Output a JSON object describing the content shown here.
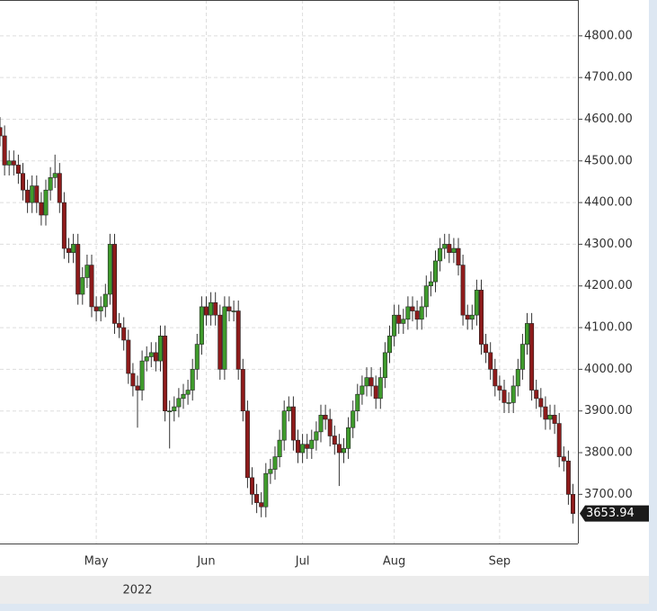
{
  "chart_data": {
    "type": "candlestick",
    "categories": [
      null,
      null,
      null,
      null,
      null,
      null,
      null,
      null,
      null,
      null,
      null,
      null,
      null,
      null,
      null,
      null,
      null,
      null,
      null,
      null,
      null,
      "May",
      null,
      null,
      null,
      null,
      null,
      null,
      null,
      null,
      null,
      null,
      null,
      null,
      null,
      null,
      null,
      null,
      null,
      null,
      null,
      null,
      null,
      null,
      null,
      "Jun",
      null,
      null,
      null,
      null,
      null,
      null,
      null,
      null,
      null,
      null,
      null,
      null,
      null,
      null,
      null,
      null,
      null,
      null,
      null,
      null,
      "Jul",
      null,
      null,
      null,
      null,
      null,
      null,
      null,
      null,
      null,
      null,
      null,
      null,
      null,
      null,
      null,
      null,
      null,
      null,
      null,
      "Aug",
      null,
      null,
      null,
      null,
      null,
      null,
      null,
      null,
      null,
      null,
      null,
      null,
      null,
      null,
      null,
      null,
      null,
      null,
      null,
      null,
      null,
      null,
      "Sep",
      null,
      null,
      null,
      null,
      null,
      null,
      null,
      null,
      null,
      null,
      null,
      null,
      null,
      null,
      null,
      null
    ],
    "open": [
      4580,
      4560,
      4490,
      4500,
      4490,
      4470,
      4430,
      4400,
      4440,
      4400,
      4370,
      4430,
      4460,
      4470,
      4400,
      4290,
      4280,
      4300,
      4180,
      4220,
      4250,
      4150,
      4140,
      4150,
      4180,
      4300,
      4110,
      4100,
      4070,
      3990,
      3960,
      3950,
      4020,
      4030,
      4040,
      4020,
      4080,
      3900,
      3900,
      3910,
      3930,
      3940,
      3950,
      4000,
      4060,
      4150,
      4130,
      4160,
      4130,
      4000,
      4150,
      4140,
      4140,
      4000,
      3900,
      3740,
      3700,
      3680,
      3670,
      3750,
      3760,
      3790,
      3830,
      3900,
      3910,
      3830,
      3800,
      3820,
      3810,
      3830,
      3850,
      3890,
      3880,
      3840,
      3820,
      3800,
      3810,
      3860,
      3900,
      3940,
      3960,
      3980,
      3960,
      3930,
      3980,
      4040,
      4080,
      4130,
      4110,
      4120,
      4150,
      4140,
      4120,
      4150,
      4200,
      4210,
      4260,
      4290,
      4300,
      4280,
      4290,
      4250,
      4130,
      4120,
      4130,
      4190,
      4060,
      4040,
      4000,
      3960,
      3950,
      3920,
      3920,
      3960,
      4000,
      4060,
      4110,
      3950,
      3930,
      3910,
      3880,
      3890,
      3870,
      3790,
      3780,
      3700
    ],
    "high": [
      4605,
      4585,
      4525,
      4525,
      4515,
      4495,
      4455,
      4465,
      4465,
      4425,
      4455,
      4485,
      4515,
      4495,
      4425,
      4315,
      4325,
      4325,
      4245,
      4275,
      4275,
      4175,
      4175,
      4205,
      4325,
      4325,
      4135,
      4125,
      4095,
      4015,
      3985,
      4045,
      4055,
      4065,
      4065,
      4105,
      4105,
      3925,
      3935,
      3955,
      3965,
      3975,
      4025,
      4085,
      4175,
      4175,
      4185,
      4185,
      4155,
      4175,
      4175,
      4165,
      4165,
      4025,
      3925,
      3765,
      3725,
      3705,
      3775,
      3785,
      3815,
      3855,
      3925,
      3935,
      3935,
      3855,
      3845,
      3845,
      3855,
      3875,
      3915,
      3915,
      3905,
      3865,
      3845,
      3835,
      3885,
      3925,
      3965,
      3985,
      4005,
      4005,
      3985,
      4005,
      4065,
      4105,
      4155,
      4155,
      4145,
      4175,
      4175,
      4165,
      4175,
      4225,
      4235,
      4285,
      4315,
      4325,
      4325,
      4315,
      4315,
      4275,
      4155,
      4155,
      4215,
      4215,
      4085,
      4065,
      4025,
      3985,
      3975,
      3945,
      3985,
      4025,
      4085,
      4135,
      4135,
      3975,
      3955,
      3935,
      3915,
      3915,
      3895,
      3815,
      3805,
      3725
    ],
    "low": [
      4535,
      4465,
      4465,
      4465,
      4445,
      4405,
      4375,
      4375,
      4375,
      4345,
      4345,
      4405,
      4435,
      4375,
      4265,
      4255,
      4255,
      4155,
      4155,
      4195,
      4125,
      4115,
      4115,
      4125,
      4155,
      4085,
      4075,
      4045,
      3965,
      3935,
      3860,
      3925,
      3995,
      4005,
      3995,
      3995,
      3875,
      3810,
      3875,
      3885,
      3905,
      3915,
      3925,
      3975,
      4035,
      4105,
      4105,
      4105,
      3975,
      3975,
      4115,
      4115,
      3975,
      3875,
      3715,
      3675,
      3655,
      3645,
      3645,
      3725,
      3735,
      3765,
      3805,
      3875,
      3805,
      3775,
      3775,
      3785,
      3785,
      3805,
      3825,
      3855,
      3815,
      3795,
      3720,
      3775,
      3785,
      3835,
      3875,
      3915,
      3935,
      3935,
      3905,
      3905,
      3955,
      4015,
      4055,
      4085,
      4085,
      4095,
      4115,
      4095,
      4095,
      4125,
      4175,
      4185,
      4235,
      4265,
      4255,
      4255,
      4225,
      4105,
      4095,
      4095,
      4105,
      4035,
      4015,
      3975,
      3935,
      3925,
      3895,
      3895,
      3895,
      3935,
      3975,
      4035,
      3925,
      3905,
      3885,
      3855,
      3855,
      3845,
      3765,
      3755,
      3675,
      3630
    ],
    "close": [
      4560,
      4490,
      4500,
      4490,
      4470,
      4430,
      4400,
      4440,
      4400,
      4370,
      4430,
      4460,
      4470,
      4400,
      4290,
      4280,
      4300,
      4180,
      4220,
      4250,
      4150,
      4140,
      4150,
      4180,
      4300,
      4110,
      4100,
      4070,
      3990,
      3960,
      3950,
      4020,
      4030,
      4040,
      4020,
      4080,
      3900,
      3900,
      3910,
      3930,
      3940,
      3950,
      4000,
      4060,
      4150,
      4130,
      4160,
      4130,
      4000,
      4150,
      4140,
      4140,
      4000,
      3900,
      3740,
      3700,
      3680,
      3670,
      3750,
      3760,
      3790,
      3830,
      3900,
      3910,
      3830,
      3800,
      3820,
      3810,
      3830,
      3850,
      3890,
      3880,
      3840,
      3820,
      3800,
      3810,
      3860,
      3900,
      3940,
      3960,
      3980,
      3960,
      3930,
      3980,
      4040,
      4080,
      4130,
      4110,
      4120,
      4150,
      4140,
      4120,
      4150,
      4200,
      4210,
      4260,
      4290,
      4300,
      4280,
      4290,
      4250,
      4130,
      4120,
      4130,
      4190,
      4060,
      4040,
      4000,
      3960,
      3950,
      3920,
      3920,
      3960,
      4000,
      4060,
      4110,
      3950,
      3930,
      3910,
      3880,
      3890,
      3870,
      3790,
      3780,
      3700,
      3653.94
    ],
    "up_color": "#3f9b2c",
    "down_color": "#8e1b1b",
    "x_group_label": "2022",
    "ylim": [
      3582,
      4886
    ],
    "yticks": [
      {
        "value": 3700,
        "label": "3700.00"
      },
      {
        "value": 3800,
        "label": "3800.00"
      },
      {
        "value": 3900,
        "label": "3900.00"
      },
      {
        "value": 4000,
        "label": "4000.00"
      },
      {
        "value": 4100,
        "label": "4100.00"
      },
      {
        "value": 4200,
        "label": "4200.00"
      },
      {
        "value": 4300,
        "label": "4300.00"
      },
      {
        "value": 4400,
        "label": "4400.00"
      },
      {
        "value": 4500,
        "label": "4500.00"
      },
      {
        "value": 4600,
        "label": "4600.00"
      },
      {
        "value": 4700,
        "label": "4700.00"
      },
      {
        "value": 4800,
        "label": "4800.00"
      }
    ],
    "grid": true
  }
}
